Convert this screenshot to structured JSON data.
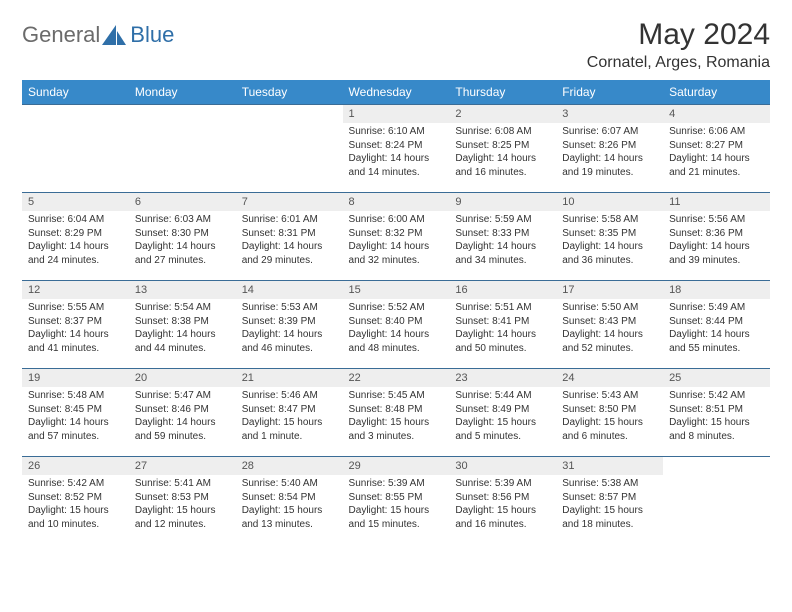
{
  "brand": {
    "text_general": "General",
    "text_blue": "Blue"
  },
  "title": "May 2024",
  "location": "Cornatel, Arges, Romania",
  "colors": {
    "header_bg": "#3789c9",
    "header_text": "#ffffff",
    "cell_border": "#3a6c96",
    "daynum_bg": "#eeeeee",
    "logo_blue": "#2f6fa8",
    "logo_gray": "#6b6b6b"
  },
  "day_headers": [
    "Sunday",
    "Monday",
    "Tuesday",
    "Wednesday",
    "Thursday",
    "Friday",
    "Saturday"
  ],
  "weeks": [
    [
      {
        "empty": true
      },
      {
        "empty": true
      },
      {
        "empty": true
      },
      {
        "num": "1",
        "sunrise": "Sunrise: 6:10 AM",
        "sunset": "Sunset: 8:24 PM",
        "dl1": "Daylight: 14 hours",
        "dl2": "and 14 minutes."
      },
      {
        "num": "2",
        "sunrise": "Sunrise: 6:08 AM",
        "sunset": "Sunset: 8:25 PM",
        "dl1": "Daylight: 14 hours",
        "dl2": "and 16 minutes."
      },
      {
        "num": "3",
        "sunrise": "Sunrise: 6:07 AM",
        "sunset": "Sunset: 8:26 PM",
        "dl1": "Daylight: 14 hours",
        "dl2": "and 19 minutes."
      },
      {
        "num": "4",
        "sunrise": "Sunrise: 6:06 AM",
        "sunset": "Sunset: 8:27 PM",
        "dl1": "Daylight: 14 hours",
        "dl2": "and 21 minutes."
      }
    ],
    [
      {
        "num": "5",
        "sunrise": "Sunrise: 6:04 AM",
        "sunset": "Sunset: 8:29 PM",
        "dl1": "Daylight: 14 hours",
        "dl2": "and 24 minutes."
      },
      {
        "num": "6",
        "sunrise": "Sunrise: 6:03 AM",
        "sunset": "Sunset: 8:30 PM",
        "dl1": "Daylight: 14 hours",
        "dl2": "and 27 minutes."
      },
      {
        "num": "7",
        "sunrise": "Sunrise: 6:01 AM",
        "sunset": "Sunset: 8:31 PM",
        "dl1": "Daylight: 14 hours",
        "dl2": "and 29 minutes."
      },
      {
        "num": "8",
        "sunrise": "Sunrise: 6:00 AM",
        "sunset": "Sunset: 8:32 PM",
        "dl1": "Daylight: 14 hours",
        "dl2": "and 32 minutes."
      },
      {
        "num": "9",
        "sunrise": "Sunrise: 5:59 AM",
        "sunset": "Sunset: 8:33 PM",
        "dl1": "Daylight: 14 hours",
        "dl2": "and 34 minutes."
      },
      {
        "num": "10",
        "sunrise": "Sunrise: 5:58 AM",
        "sunset": "Sunset: 8:35 PM",
        "dl1": "Daylight: 14 hours",
        "dl2": "and 36 minutes."
      },
      {
        "num": "11",
        "sunrise": "Sunrise: 5:56 AM",
        "sunset": "Sunset: 8:36 PM",
        "dl1": "Daylight: 14 hours",
        "dl2": "and 39 minutes."
      }
    ],
    [
      {
        "num": "12",
        "sunrise": "Sunrise: 5:55 AM",
        "sunset": "Sunset: 8:37 PM",
        "dl1": "Daylight: 14 hours",
        "dl2": "and 41 minutes."
      },
      {
        "num": "13",
        "sunrise": "Sunrise: 5:54 AM",
        "sunset": "Sunset: 8:38 PM",
        "dl1": "Daylight: 14 hours",
        "dl2": "and 44 minutes."
      },
      {
        "num": "14",
        "sunrise": "Sunrise: 5:53 AM",
        "sunset": "Sunset: 8:39 PM",
        "dl1": "Daylight: 14 hours",
        "dl2": "and 46 minutes."
      },
      {
        "num": "15",
        "sunrise": "Sunrise: 5:52 AM",
        "sunset": "Sunset: 8:40 PM",
        "dl1": "Daylight: 14 hours",
        "dl2": "and 48 minutes."
      },
      {
        "num": "16",
        "sunrise": "Sunrise: 5:51 AM",
        "sunset": "Sunset: 8:41 PM",
        "dl1": "Daylight: 14 hours",
        "dl2": "and 50 minutes."
      },
      {
        "num": "17",
        "sunrise": "Sunrise: 5:50 AM",
        "sunset": "Sunset: 8:43 PM",
        "dl1": "Daylight: 14 hours",
        "dl2": "and 52 minutes."
      },
      {
        "num": "18",
        "sunrise": "Sunrise: 5:49 AM",
        "sunset": "Sunset: 8:44 PM",
        "dl1": "Daylight: 14 hours",
        "dl2": "and 55 minutes."
      }
    ],
    [
      {
        "num": "19",
        "sunrise": "Sunrise: 5:48 AM",
        "sunset": "Sunset: 8:45 PM",
        "dl1": "Daylight: 14 hours",
        "dl2": "and 57 minutes."
      },
      {
        "num": "20",
        "sunrise": "Sunrise: 5:47 AM",
        "sunset": "Sunset: 8:46 PM",
        "dl1": "Daylight: 14 hours",
        "dl2": "and 59 minutes."
      },
      {
        "num": "21",
        "sunrise": "Sunrise: 5:46 AM",
        "sunset": "Sunset: 8:47 PM",
        "dl1": "Daylight: 15 hours",
        "dl2": "and 1 minute."
      },
      {
        "num": "22",
        "sunrise": "Sunrise: 5:45 AM",
        "sunset": "Sunset: 8:48 PM",
        "dl1": "Daylight: 15 hours",
        "dl2": "and 3 minutes."
      },
      {
        "num": "23",
        "sunrise": "Sunrise: 5:44 AM",
        "sunset": "Sunset: 8:49 PM",
        "dl1": "Daylight: 15 hours",
        "dl2": "and 5 minutes."
      },
      {
        "num": "24",
        "sunrise": "Sunrise: 5:43 AM",
        "sunset": "Sunset: 8:50 PM",
        "dl1": "Daylight: 15 hours",
        "dl2": "and 6 minutes."
      },
      {
        "num": "25",
        "sunrise": "Sunrise: 5:42 AM",
        "sunset": "Sunset: 8:51 PM",
        "dl1": "Daylight: 15 hours",
        "dl2": "and 8 minutes."
      }
    ],
    [
      {
        "num": "26",
        "sunrise": "Sunrise: 5:42 AM",
        "sunset": "Sunset: 8:52 PM",
        "dl1": "Daylight: 15 hours",
        "dl2": "and 10 minutes."
      },
      {
        "num": "27",
        "sunrise": "Sunrise: 5:41 AM",
        "sunset": "Sunset: 8:53 PM",
        "dl1": "Daylight: 15 hours",
        "dl2": "and 12 minutes."
      },
      {
        "num": "28",
        "sunrise": "Sunrise: 5:40 AM",
        "sunset": "Sunset: 8:54 PM",
        "dl1": "Daylight: 15 hours",
        "dl2": "and 13 minutes."
      },
      {
        "num": "29",
        "sunrise": "Sunrise: 5:39 AM",
        "sunset": "Sunset: 8:55 PM",
        "dl1": "Daylight: 15 hours",
        "dl2": "and 15 minutes."
      },
      {
        "num": "30",
        "sunrise": "Sunrise: 5:39 AM",
        "sunset": "Sunset: 8:56 PM",
        "dl1": "Daylight: 15 hours",
        "dl2": "and 16 minutes."
      },
      {
        "num": "31",
        "sunrise": "Sunrise: 5:38 AM",
        "sunset": "Sunset: 8:57 PM",
        "dl1": "Daylight: 15 hours",
        "dl2": "and 18 minutes."
      },
      {
        "empty": true
      }
    ]
  ]
}
